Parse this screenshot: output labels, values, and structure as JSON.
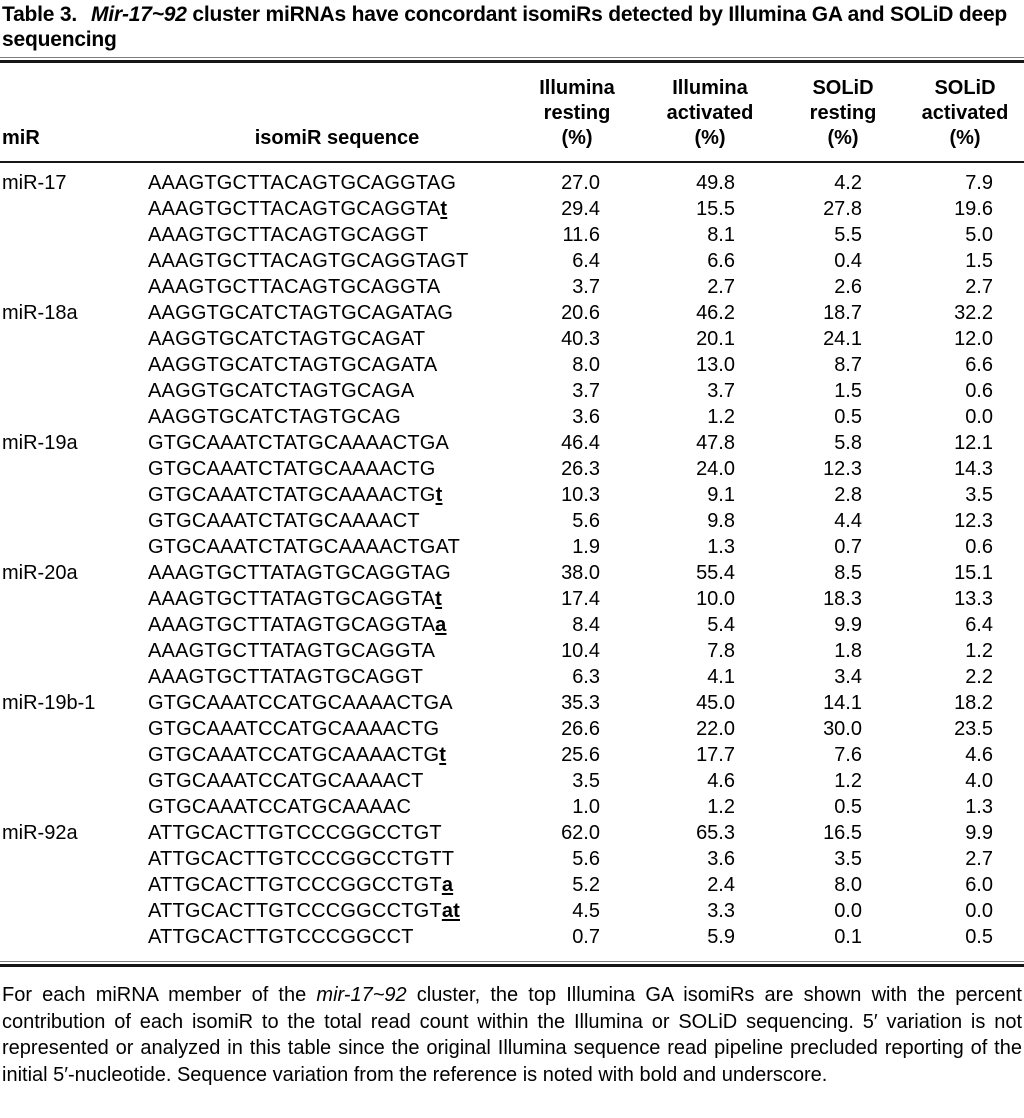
{
  "table": {
    "title": {
      "label": "Table 3.",
      "emph": "Mir-17~92",
      "rest": "cluster miRNAs have concordant isomiRs detected by Illumina GA and SOLiD deep sequencing"
    },
    "columns": [
      {
        "name": "mir",
        "lines": [
          "miR"
        ]
      },
      {
        "name": "isomir-sequence",
        "lines": [
          "isomiR sequence"
        ]
      },
      {
        "name": "illumina-resting",
        "lines": [
          "Illumina",
          "resting",
          "(%)"
        ]
      },
      {
        "name": "illumina-activated",
        "lines": [
          "Illumina",
          "activated",
          "(%)"
        ]
      },
      {
        "name": "solid-resting",
        "lines": [
          "SOLiD",
          "resting",
          "(%)"
        ]
      },
      {
        "name": "solid-activated",
        "lines": [
          "SOLiD",
          "activated",
          "(%)"
        ]
      }
    ],
    "groups": [
      {
        "mir": "miR-17",
        "rows": [
          {
            "seq": "AAAGTGCTTACAGTGCAGGTAG",
            "var": "",
            "values": [
              "27.0",
              "49.8",
              "4.2",
              "7.9"
            ]
          },
          {
            "seq": "AAAGTGCTTACAGTGCAGGTA",
            "var": "t",
            "values": [
              "29.4",
              "15.5",
              "27.8",
              "19.6"
            ]
          },
          {
            "seq": "AAAGTGCTTACAGTGCAGGT",
            "var": "",
            "values": [
              "11.6",
              "8.1",
              "5.5",
              "5.0"
            ]
          },
          {
            "seq": "AAAGTGCTTACAGTGCAGGTAGT",
            "var": "",
            "values": [
              "6.4",
              "6.6",
              "0.4",
              "1.5"
            ]
          },
          {
            "seq": "AAAGTGCTTACAGTGCAGGTA",
            "var": "",
            "values": [
              "3.7",
              "2.7",
              "2.6",
              "2.7"
            ]
          }
        ]
      },
      {
        "mir": "miR-18a",
        "rows": [
          {
            "seq": "AAGGTGCATCTAGTGCAGATAG",
            "var": "",
            "values": [
              "20.6",
              "46.2",
              "18.7",
              "32.2"
            ]
          },
          {
            "seq": "AAGGTGCATCTAGTGCAGAT",
            "var": "",
            "values": [
              "40.3",
              "20.1",
              "24.1",
              "12.0"
            ]
          },
          {
            "seq": "AAGGTGCATCTAGTGCAGATA",
            "var": "",
            "values": [
              "8.0",
              "13.0",
              "8.7",
              "6.6"
            ]
          },
          {
            "seq": "AAGGTGCATCTAGTGCAGA",
            "var": "",
            "values": [
              "3.7",
              "3.7",
              "1.5",
              "0.6"
            ]
          },
          {
            "seq": "AAGGTGCATCTAGTGCAG",
            "var": "",
            "values": [
              "3.6",
              "1.2",
              "0.5",
              "0.0"
            ]
          }
        ]
      },
      {
        "mir": "miR-19a",
        "rows": [
          {
            "seq": "GTGCAAATCTATGCAAAACTGA",
            "var": "",
            "values": [
              "46.4",
              "47.8",
              "5.8",
              "12.1"
            ]
          },
          {
            "seq": "GTGCAAATCTATGCAAAACTG",
            "var": "",
            "values": [
              "26.3",
              "24.0",
              "12.3",
              "14.3"
            ]
          },
          {
            "seq": "GTGCAAATCTATGCAAAACTG",
            "var": "t",
            "values": [
              "10.3",
              "9.1",
              "2.8",
              "3.5"
            ]
          },
          {
            "seq": "GTGCAAATCTATGCAAAACT",
            "var": "",
            "values": [
              "5.6",
              "9.8",
              "4.4",
              "12.3"
            ]
          },
          {
            "seq": "GTGCAAATCTATGCAAAACTGAT",
            "var": "",
            "values": [
              "1.9",
              "1.3",
              "0.7",
              "0.6"
            ]
          }
        ]
      },
      {
        "mir": "miR-20a",
        "rows": [
          {
            "seq": "AAAGTGCTTATAGTGCAGGTAG",
            "var": "",
            "values": [
              "38.0",
              "55.4",
              "8.5",
              "15.1"
            ]
          },
          {
            "seq": "AAAGTGCTTATAGTGCAGGTA",
            "var": "t",
            "values": [
              "17.4",
              "10.0",
              "18.3",
              "13.3"
            ]
          },
          {
            "seq": "AAAGTGCTTATAGTGCAGGTA",
            "var": "a",
            "values": [
              "8.4",
              "5.4",
              "9.9",
              "6.4"
            ]
          },
          {
            "seq": "AAAGTGCTTATAGTGCAGGTA",
            "var": "",
            "values": [
              "10.4",
              "7.8",
              "1.8",
              "1.2"
            ]
          },
          {
            "seq": "AAAGTGCTTATAGTGCAGGT",
            "var": "",
            "values": [
              "6.3",
              "4.1",
              "3.4",
              "2.2"
            ]
          }
        ]
      },
      {
        "mir": "miR-19b-1",
        "rows": [
          {
            "seq": "GTGCAAATCCATGCAAAACTGA",
            "var": "",
            "values": [
              "35.3",
              "45.0",
              "14.1",
              "18.2"
            ]
          },
          {
            "seq": "GTGCAAATCCATGCAAAACTG",
            "var": "",
            "values": [
              "26.6",
              "22.0",
              "30.0",
              "23.5"
            ]
          },
          {
            "seq": "GTGCAAATCCATGCAAAACTG",
            "var": "t",
            "values": [
              "25.6",
              "17.7",
              "7.6",
              "4.6"
            ]
          },
          {
            "seq": "GTGCAAATCCATGCAAAACT",
            "var": "",
            "values": [
              "3.5",
              "4.6",
              "1.2",
              "4.0"
            ]
          },
          {
            "seq": "GTGCAAATCCATGCAAAAC",
            "var": "",
            "values": [
              "1.0",
              "1.2",
              "0.5",
              "1.3"
            ]
          }
        ]
      },
      {
        "mir": "miR-92a",
        "rows": [
          {
            "seq": "ATTGCACTTGTCCCGGCCTGT",
            "var": "",
            "values": [
              "62.0",
              "65.3",
              "16.5",
              "9.9"
            ]
          },
          {
            "seq": "ATTGCACTTGTCCCGGCCTGTT",
            "var": "",
            "values": [
              "5.6",
              "3.6",
              "3.5",
              "2.7"
            ]
          },
          {
            "seq": "ATTGCACTTGTCCCGGCCTGT",
            "var": "a",
            "values": [
              "5.2",
              "2.4",
              "8.0",
              "6.0"
            ]
          },
          {
            "seq": "ATTGCACTTGTCCCGGCCTGT",
            "var": "at",
            "values": [
              "4.5",
              "3.3",
              "0.0",
              "0.0"
            ]
          },
          {
            "seq": "ATTGCACTTGTCCCGGCCT",
            "var": "",
            "values": [
              "0.7",
              "5.9",
              "0.1",
              "0.5"
            ]
          }
        ]
      }
    ],
    "footnote": {
      "pre": "For each miRNA member of the ",
      "emph": "mir-17~92",
      "post": " cluster, the top Illumina GA isomiRs are shown with the percent contribution of each isomiR to the total read count within the Illumina or SOLiD sequencing. 5′ variation is not represented or analyzed in this table since the original Illumina sequence read pipeline precluded reporting of the initial 5′-nucleotide. Sequence variation from the reference is noted with bold and underscore."
    }
  }
}
